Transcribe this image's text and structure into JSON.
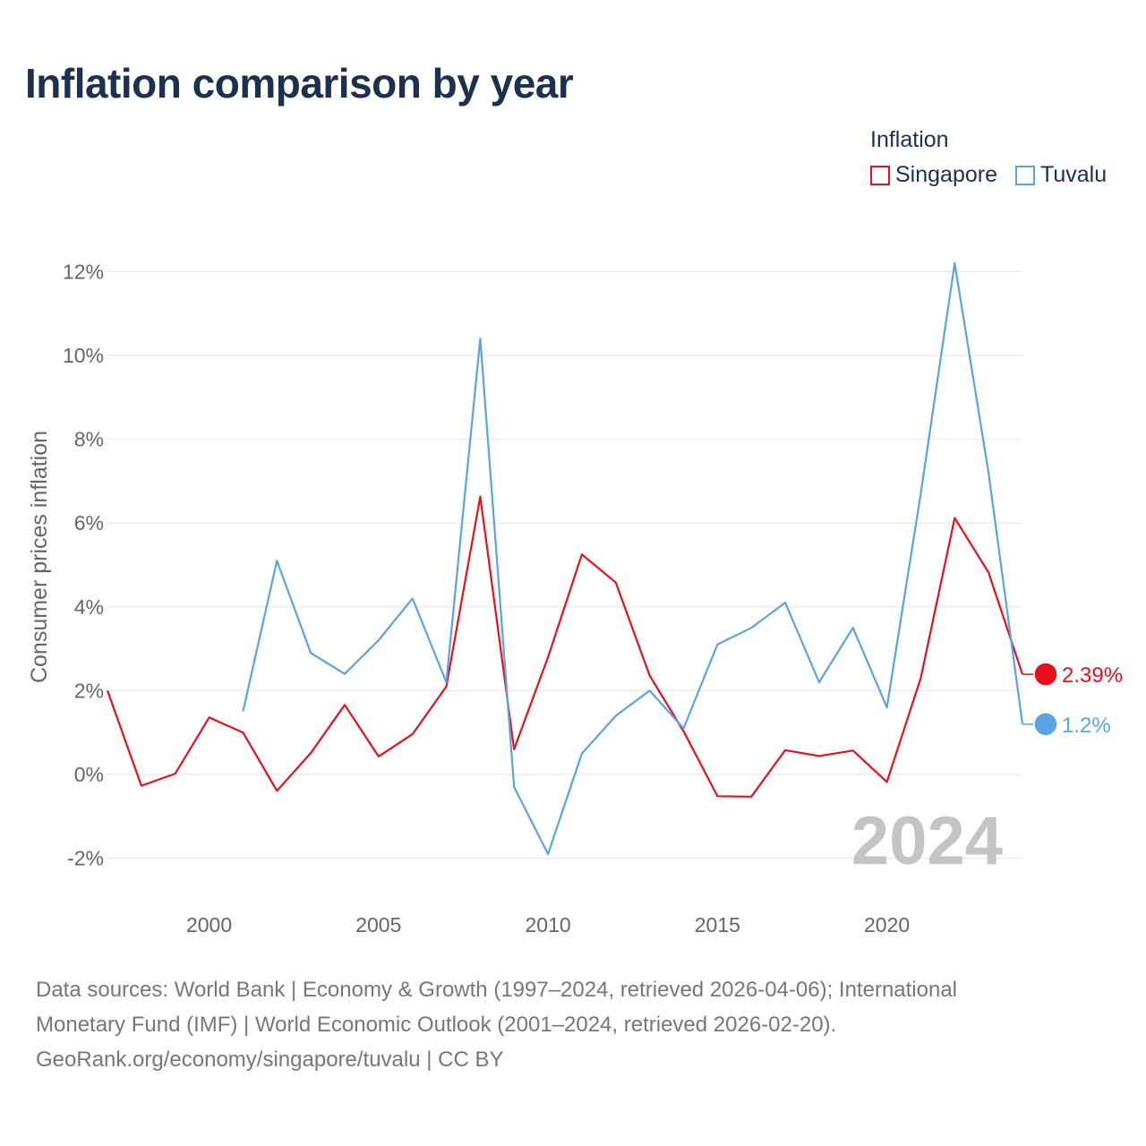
{
  "title": "Inflation comparison by year",
  "legend": {
    "title": "Inflation",
    "items": [
      {
        "name": "Singapore",
        "color": "#e8101b"
      },
      {
        "name": "Tuvalu",
        "color": "#5ca3e4"
      }
    ]
  },
  "source_lines": [
    "Data sources: World Bank | Economy & Growth (1997–2024, retrieved 2026-04-06); International",
    "Monetary Fund (IMF) | World Economic Outlook (2001–2024, retrieved 2026-02-20).",
    "GeoRank.org/economy/singapore/tuvalu | CC BY"
  ],
  "chart_data": {
    "type": "line",
    "title": "Inflation comparison by year",
    "xlabel": "",
    "ylabel": "Consumer prices inflation",
    "xlim": [
      1997,
      2024
    ],
    "ylim": [
      -2.5,
      12.5
    ],
    "x_ticks": [
      2000,
      2005,
      2010,
      2015,
      2020
    ],
    "y_ticks": [
      -2,
      0,
      2,
      4,
      6,
      8,
      10,
      12
    ],
    "y_tick_labels": [
      "-2%",
      "0%",
      "2%",
      "4%",
      "6%",
      "8%",
      "10%",
      "12%"
    ],
    "watermark_year": "2024",
    "series": [
      {
        "name": "Singapore",
        "color": "#e8101b",
        "end_label": "2.39%",
        "x": [
          1997,
          1998,
          1999,
          2000,
          2001,
          2002,
          2003,
          2004,
          2005,
          2006,
          2007,
          2008,
          2009,
          2010,
          2011,
          2012,
          2013,
          2014,
          2015,
          2016,
          2017,
          2018,
          2019,
          2020,
          2021,
          2022,
          2023,
          2024
        ],
        "values": [
          2.0,
          -0.27,
          0.02,
          1.36,
          1.0,
          -0.39,
          0.51,
          1.66,
          0.43,
          0.96,
          2.1,
          6.63,
          0.6,
          2.8,
          5.25,
          4.58,
          2.36,
          1.03,
          -0.52,
          -0.53,
          0.58,
          0.44,
          0.57,
          -0.18,
          2.3,
          6.12,
          4.82,
          2.39
        ]
      },
      {
        "name": "Tuvalu",
        "color": "#5ca3e4",
        "end_label": "1.2%",
        "x": [
          2001,
          2002,
          2003,
          2004,
          2005,
          2006,
          2007,
          2008,
          2009,
          2010,
          2011,
          2012,
          2013,
          2014,
          2015,
          2016,
          2017,
          2018,
          2019,
          2020,
          2021,
          2022,
          2023,
          2024
        ],
        "values": [
          1.5,
          5.1,
          2.9,
          2.4,
          3.2,
          4.2,
          2.2,
          10.4,
          -0.3,
          -1.9,
          0.5,
          1.4,
          2.0,
          1.1,
          3.1,
          3.5,
          4.1,
          2.2,
          3.5,
          1.6,
          6.7,
          12.2,
          7.2,
          1.2
        ]
      }
    ]
  }
}
